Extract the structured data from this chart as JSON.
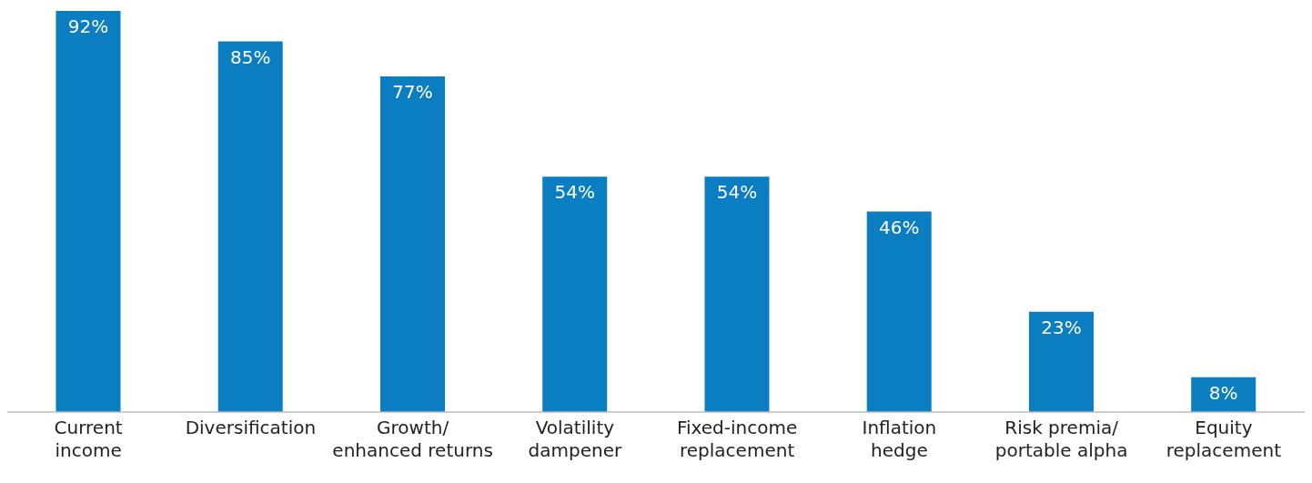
{
  "chart_data": {
    "type": "bar",
    "categories": [
      "Current\nincome",
      "Diversification",
      "Growth/\nenhanced returns",
      "Volatility\ndampener",
      "Fixed-income\nreplacement",
      "Inflation\nhedge",
      "Risk premia/\nportable alpha",
      "Equity\nreplacement"
    ],
    "values": [
      92,
      85,
      77,
      54,
      54,
      46,
      23,
      8
    ],
    "value_labels": [
      "92%",
      "85%",
      "77%",
      "54%",
      "54%",
      "46%",
      "23%",
      "8%"
    ],
    "color": "#0b7dc1",
    "ylim": [
      0,
      92
    ],
    "tick_labels": "x",
    "grid": false,
    "legend": false
  }
}
